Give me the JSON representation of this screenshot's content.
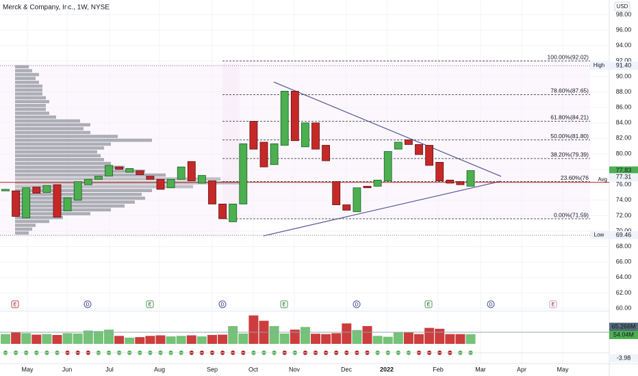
{
  "chart_data": {
    "type": "candlestick",
    "title": "Merck & Company, Inc., 1W, NYSE",
    "currency": "USD",
    "open": [
      75.2,
      75.2,
      71.7,
      75.7,
      75.0,
      76.0,
      72.6,
      74.0,
      76.0,
      76.7,
      77.1,
      78.3,
      77.6,
      77.8,
      77.1,
      76.7,
      75.6,
      76.7,
      79.0,
      76.2,
      76.5,
      73.5,
      71.2,
      73.5,
      84.2,
      81.5,
      78.6,
      81.1,
      88.1,
      80.9,
      84.0,
      81.1,
      76.4,
      73.4,
      72.5,
      75.8,
      75.8,
      76.5,
      80.6,
      81.8,
      81.2,
      81.1,
      78.9,
      76.6,
      76.4,
      75.8
    ],
    "high": {
      "name": "High",
      "value": 91.4,
      "label": "91.40"
    },
    "low": {
      "name": "Low",
      "value": 69.46,
      "label": "69.46"
    },
    "close": [
      75.4,
      71.9,
      75.6,
      74.9,
      75.9,
      71.8,
      74.3,
      76.4,
      76.7,
      77.1,
      78.5,
      78.0,
      78.1,
      77.3,
      76.7,
      75.4,
      76.7,
      78.3,
      76.5,
      77.2,
      73.5,
      71.6,
      73.5,
      81.3,
      80.6,
      78.3,
      81.3,
      88.1,
      81.7,
      84.0,
      80.6,
      79.1,
      73.4,
      72.7,
      75.6,
      75.6,
      76.6,
      80.3,
      81.5,
      81.2,
      79.9,
      78.5,
      76.5,
      76.2,
      76.0,
      77.83
    ],
    "volume": [
      55,
      65,
      60,
      52,
      55,
      50,
      60,
      58,
      75,
      72,
      80,
      45,
      35,
      38,
      45,
      48,
      42,
      45,
      48,
      42,
      50,
      52,
      100,
      58,
      160,
      130,
      100,
      58,
      80,
      95,
      57,
      55,
      60,
      115,
      78,
      100,
      45,
      40,
      65,
      65,
      55,
      90,
      85,
      55,
      55,
      54.04
    ],
    "volume_avg": {
      "value": 65.266,
      "label": "65.266M"
    },
    "volume_last": {
      "value": 54.04,
      "label": "54.04M"
    },
    "volume_ylim": [
      0,
      200
    ],
    "indicator_colors": [
      "#4caf50",
      "#4caf50",
      "#4caf50",
      "#4caf50",
      "#4caf50",
      "#4caf50",
      "#b71c1c",
      "#b71c1c",
      "#b71c1c",
      "#4caf50",
      "#4caf50",
      "#4caf50",
      "#4caf50",
      "#4caf50",
      "#4caf50",
      "#4caf50",
      "#4caf50",
      "#4caf50",
      "#b71c1c",
      "#b71c1c",
      "#b71c1c",
      "#b71c1c",
      "#b71c1c",
      "#b71c1c",
      "#4caf50",
      "#4caf50",
      "#4caf50",
      "#b71c1c",
      "#4caf50",
      "#b71c1c",
      "#b71c1c",
      "#b71c1c",
      "#b71c1c",
      "#b71c1c",
      "#b71c1c",
      "#b71c1c",
      "#4caf50",
      "#4caf50",
      "#4caf50",
      "#4caf50",
      "#b71c1c",
      "#b71c1c",
      "#b71c1c",
      "#b71c1c",
      "#4caf50",
      "#4caf50"
    ],
    "indicator_value": {
      "value": -3.98,
      "label": "-3.98"
    },
    "events": [
      "E",
      "D",
      "E",
      "D",
      "E",
      "D",
      "E",
      "D",
      "E"
    ],
    "months": [
      "May",
      "Jun",
      "Jul",
      "Aug",
      "Sep",
      "Oct",
      "Nov",
      "Dec",
      "2022",
      "Feb",
      "Mar",
      "Apr",
      "May"
    ],
    "ylim": [
      59.65,
      99.9
    ],
    "yticks": [
      {
        "value": 60,
        "label": "60.00"
      },
      {
        "value": 62,
        "label": "62.00"
      },
      {
        "value": 64,
        "label": "64.00"
      },
      {
        "value": 66,
        "label": "66.00"
      },
      {
        "value": 68,
        "label": "68.00"
      },
      {
        "value": 70,
        "label": "70.00"
      },
      {
        "value": 72,
        "label": "72.00"
      },
      {
        "value": 74,
        "label": "74.00"
      },
      {
        "value": 76,
        "label": "76.00"
      },
      {
        "value": 78,
        "label": "78.00"
      },
      {
        "value": 80,
        "label": "80.00"
      },
      {
        "value": 82,
        "label": "82.00"
      },
      {
        "value": 84,
        "label": "84.00"
      },
      {
        "value": 86,
        "label": "86.00"
      },
      {
        "value": 88,
        "label": "88.00"
      },
      {
        "value": 90,
        "label": "90.00"
      },
      {
        "value": 92,
        "label": "92.00"
      },
      {
        "value": 94,
        "label": "94.00"
      },
      {
        "value": 96,
        "label": "96.00"
      },
      {
        "value": 98,
        "label": "98.00"
      }
    ],
    "grid": true,
    "fib_levels": [
      {
        "value": 92.02,
        "label": "100.00%(92.02)"
      },
      {
        "value": 87.65,
        "label": "78.60%(87.65)"
      },
      {
        "value": 84.21,
        "label": "61.80%(84.21)"
      },
      {
        "value": 81.8,
        "label": "50.00%(81.80)"
      },
      {
        "value": 79.39,
        "label": "38.20%(79.39)"
      },
      {
        "value": 76.41,
        "label": "23.60%(76"
      },
      {
        "value": 71.59,
        "label": "0.00%(71.59)"
      }
    ],
    "avg": {
      "name": "Avg",
      "value": 76.3
    },
    "last_price": {
      "value": 77.83,
      "label": "77.83"
    },
    "mark_price": {
      "value": 77.31,
      "label": "77.31"
    },
    "profile_bins": [
      69.5,
      70,
      70.5,
      71,
      71.5,
      72,
      72.5,
      73,
      73.5,
      74,
      74.5,
      75,
      75.5,
      76,
      76.5,
      77,
      77.5,
      78,
      78.5,
      79,
      79.5,
      80,
      80.5,
      81,
      81.5,
      82,
      82.5,
      83,
      83.5,
      84,
      84.5,
      85,
      85.5,
      86,
      86.5,
      87,
      87.5,
      88,
      88.5,
      89,
      89.5,
      90,
      90.5,
      91,
      91.5
    ],
    "profile_values": [
      20,
      25,
      30,
      50,
      70,
      110,
      140,
      160,
      175,
      190,
      185,
      200,
      260,
      330,
      300,
      220,
      190,
      160,
      140,
      130,
      125,
      120,
      130,
      140,
      200,
      150,
      110,
      100,
      110,
      95,
      60,
      50,
      45,
      45,
      50,
      45,
      40,
      40,
      40,
      35,
      30,
      35,
      25,
      20
    ]
  }
}
